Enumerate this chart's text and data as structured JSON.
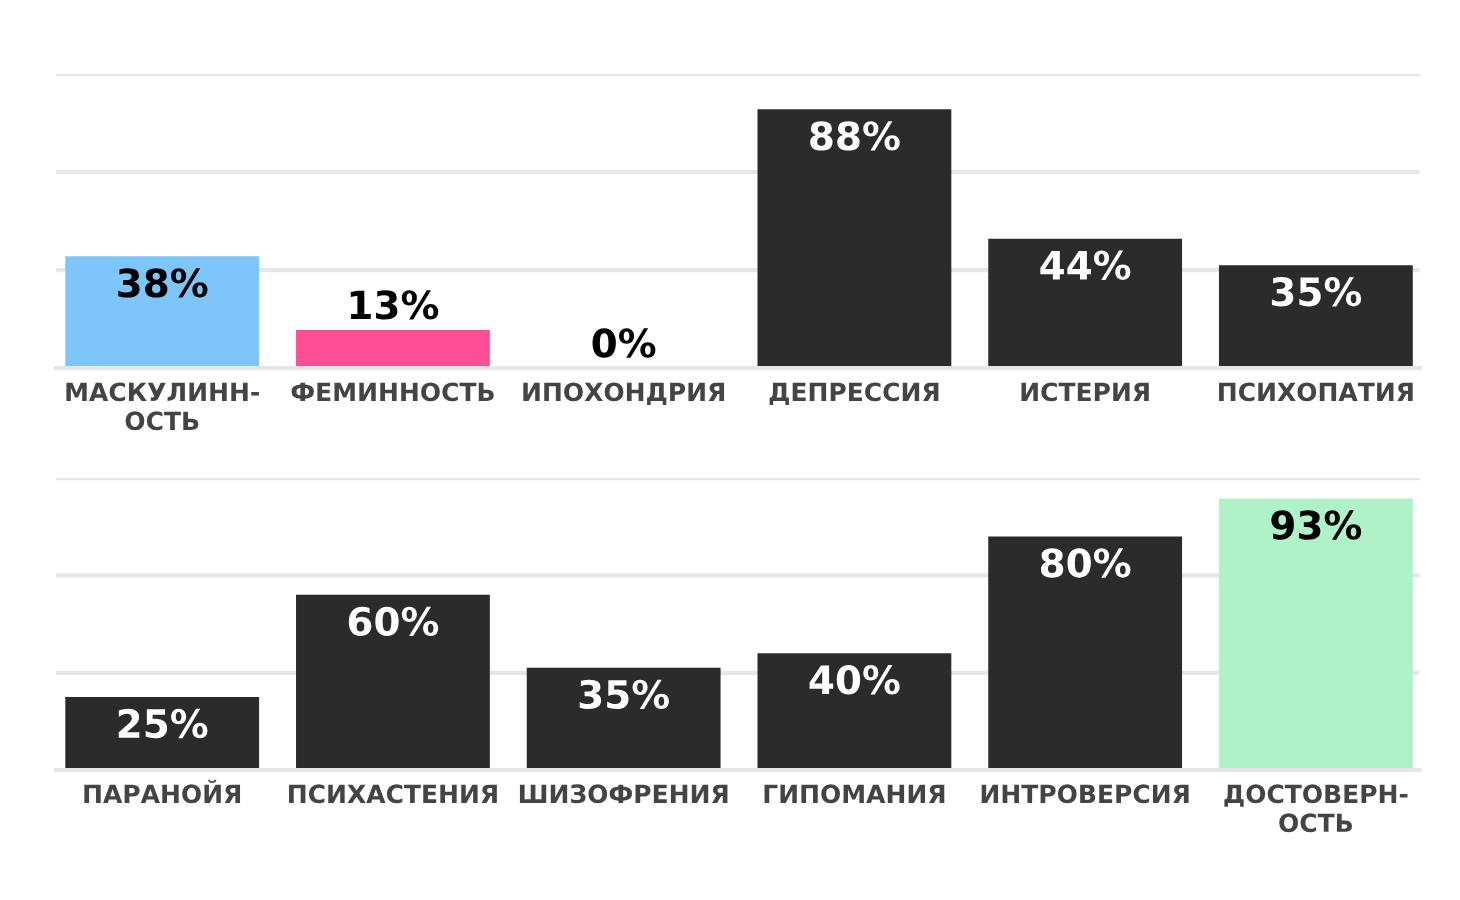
{
  "chart_data": [
    {
      "type": "bar",
      "categories": [
        "МАСКУЛИНН-\nОСТЬ",
        "ФЕМИННОСТЬ",
        "ИПОХОНДРИЯ",
        "ДЕПРЕССИЯ",
        "ИСТЕРИЯ",
        "ПСИХОПАТИЯ"
      ],
      "values": [
        38,
        13,
        0,
        88,
        44,
        35
      ],
      "value_labels": [
        "38%",
        "13%",
        "0%",
        "88%",
        "44%",
        "35%"
      ],
      "colors": [
        "#7cc6fb",
        "#ff4f94",
        "#2b2b2b",
        "#2b2b2b",
        "#2b2b2b",
        "#2b2b2b"
      ],
      "ylim": [
        0,
        100
      ],
      "yticks": [
        {
          "value": 0,
          "label": null
        },
        {
          "value": 33.3,
          "label": null
        },
        {
          "value": 66.7,
          "label": null
        },
        {
          "value": 100,
          "label": null
        }
      ],
      "grid": "y",
      "tick_labels": "x"
    },
    {
      "type": "bar",
      "categories": [
        "ПАРАНОЙЯ",
        "ПСИХАСТЕНИЯ",
        "ШИЗОФРЕНИЯ",
        "ГИПОМАНИЯ",
        "ИНТРОВЕРСИЯ",
        "ДОСТОВЕРН-\nОСТЬ"
      ],
      "values": [
        25,
        60,
        35,
        40,
        80,
        93
      ],
      "value_labels": [
        "25%",
        "60%",
        "35%",
        "40%",
        "80%",
        "93%"
      ],
      "colors": [
        "#2b2b2b",
        "#2b2b2b",
        "#2b2b2b",
        "#2b2b2b",
        "#2b2b2b",
        "#b0f2c8"
      ],
      "ylim": [
        0,
        100
      ],
      "yticks": [
        {
          "value": 0,
          "label": null
        },
        {
          "value": 33.3,
          "label": null
        },
        {
          "value": 66.7,
          "label": null
        },
        {
          "value": 100,
          "label": null
        }
      ],
      "grid": "y",
      "tick_labels": "x"
    }
  ]
}
